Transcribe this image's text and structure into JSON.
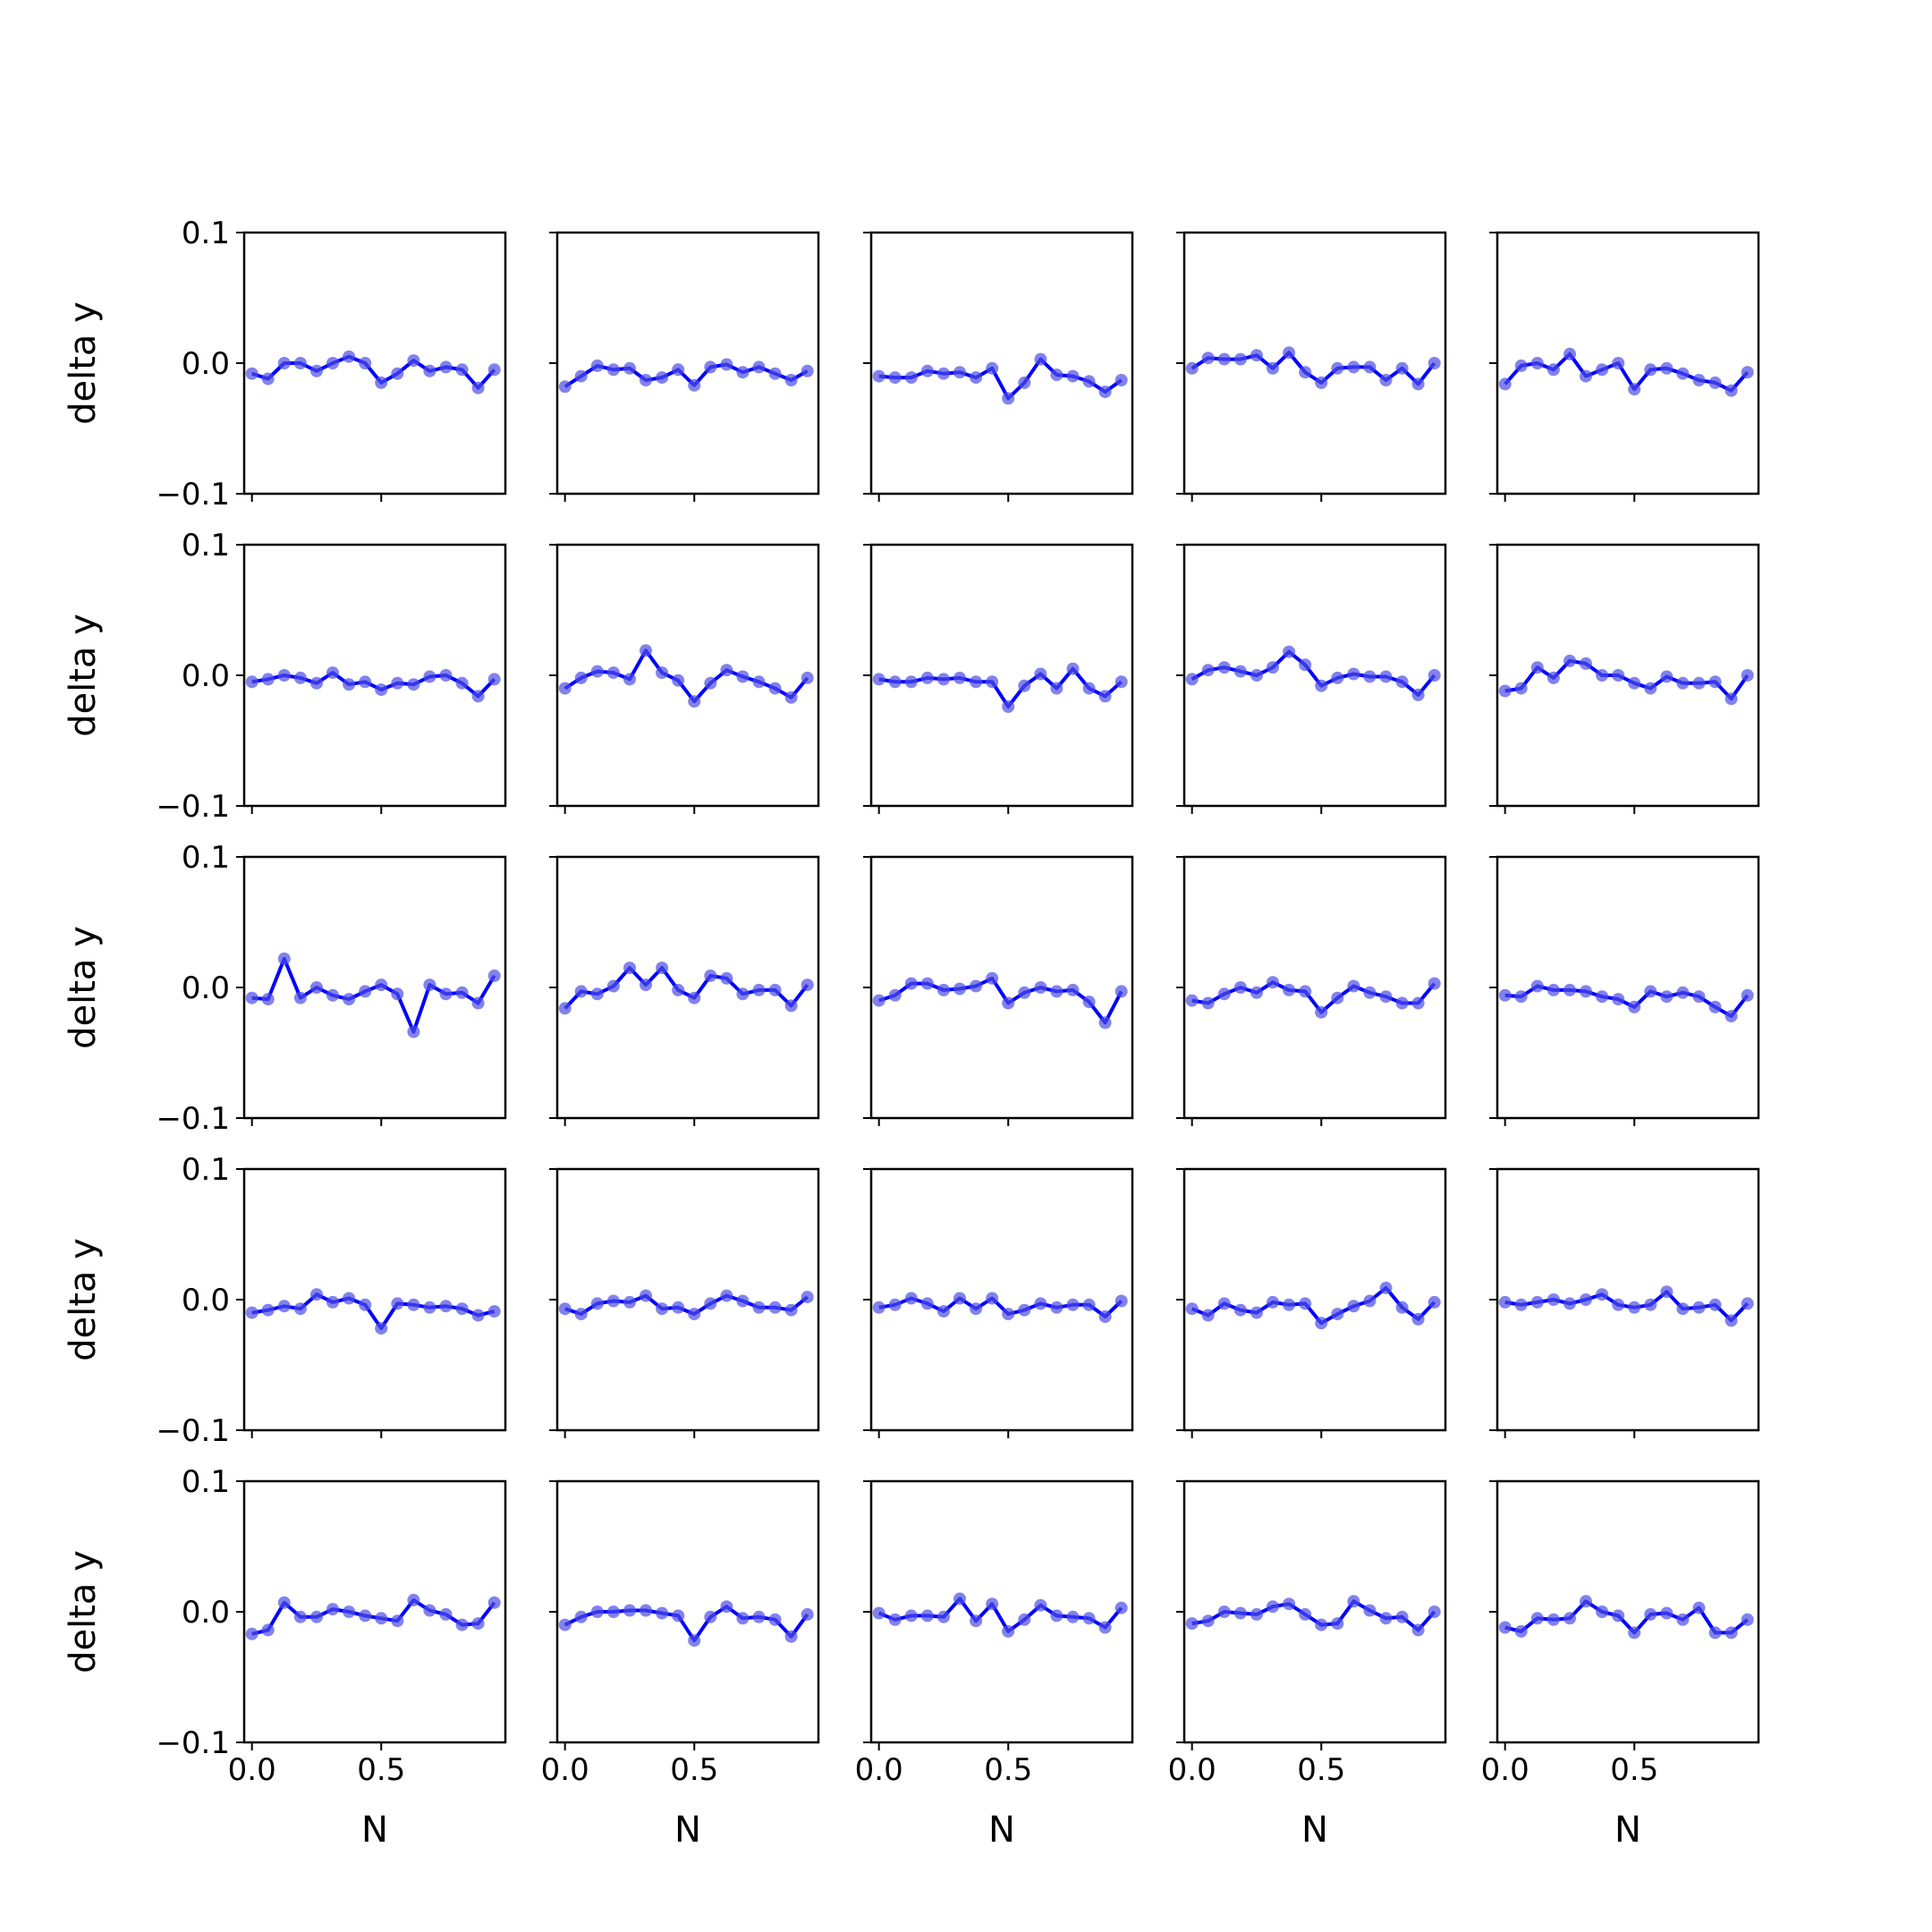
{
  "figure": {
    "rows": 5,
    "cols": 5
  },
  "chart_data": {
    "type": "line",
    "x": [
      0.0,
      0.0625,
      0.125,
      0.1875,
      0.25,
      0.3125,
      0.375,
      0.4375,
      0.5,
      0.5625,
      0.625,
      0.6875,
      0.75,
      0.8125,
      0.875,
      0.9375
    ],
    "xlabel": "N",
    "ylabel": "delta y",
    "xlim": [
      -0.03,
      0.98
    ],
    "ylim": [
      -0.1,
      0.1
    ],
    "xticks": [
      0.0,
      0.5
    ],
    "xticklabels": [
      "0.0",
      "0.5"
    ],
    "yticks": [
      0.1,
      0.0,
      -0.1
    ],
    "yticklabels": [
      "0.1",
      "0.0",
      "−0.1"
    ],
    "colors": {
      "line": "#0000ff",
      "marker": "#4d4de6"
    },
    "panels": [
      [
        -0.008,
        -0.012,
        0.0,
        0.0,
        -0.006,
        0.0,
        0.005,
        0.0,
        -0.015,
        -0.008,
        0.002,
        -0.006,
        -0.003,
        -0.005,
        -0.019,
        -0.005
      ],
      [
        -0.018,
        -0.01,
        -0.002,
        -0.005,
        -0.004,
        -0.013,
        -0.011,
        -0.005,
        -0.017,
        -0.003,
        -0.001,
        -0.007,
        -0.003,
        -0.008,
        -0.013,
        -0.006
      ],
      [
        -0.01,
        -0.011,
        -0.011,
        -0.006,
        -0.008,
        -0.007,
        -0.011,
        -0.004,
        -0.027,
        -0.015,
        0.003,
        -0.009,
        -0.01,
        -0.014,
        -0.022,
        -0.013
      ],
      [
        -0.004,
        0.004,
        0.003,
        0.003,
        0.006,
        -0.004,
        0.008,
        -0.007,
        -0.015,
        -0.004,
        -0.003,
        -0.003,
        -0.013,
        -0.004,
        -0.016,
        0.0
      ],
      [
        -0.016,
        -0.002,
        0.0,
        -0.005,
        0.007,
        -0.01,
        -0.005,
        0.0,
        -0.02,
        -0.005,
        -0.004,
        -0.008,
        -0.013,
        -0.015,
        -0.021,
        -0.007
      ],
      [
        -0.005,
        -0.003,
        0.0,
        -0.002,
        -0.006,
        0.002,
        -0.007,
        -0.005,
        -0.011,
        -0.006,
        -0.007,
        -0.001,
        0.0,
        -0.006,
        -0.016,
        -0.003
      ],
      [
        -0.01,
        -0.002,
        0.003,
        0.002,
        -0.003,
        0.019,
        0.002,
        -0.004,
        -0.02,
        -0.006,
        0.004,
        -0.001,
        -0.005,
        -0.01,
        -0.017,
        -0.002
      ],
      [
        -0.003,
        -0.005,
        -0.005,
        -0.002,
        -0.003,
        -0.002,
        -0.005,
        -0.005,
        -0.024,
        -0.008,
        0.001,
        -0.01,
        0.005,
        -0.01,
        -0.016,
        -0.005
      ],
      [
        -0.003,
        0.004,
        0.006,
        0.003,
        0.0,
        0.006,
        0.018,
        0.008,
        -0.008,
        -0.002,
        0.001,
        -0.001,
        -0.001,
        -0.005,
        -0.015,
        0.0
      ],
      [
        -0.012,
        -0.01,
        0.006,
        -0.002,
        0.011,
        0.009,
        0.0,
        0.0,
        -0.006,
        -0.01,
        -0.001,
        -0.006,
        -0.006,
        -0.005,
        -0.018,
        0.0
      ],
      [
        -0.008,
        -0.009,
        0.022,
        -0.008,
        0.0,
        -0.006,
        -0.009,
        -0.003,
        0.002,
        -0.005,
        -0.034,
        0.002,
        -0.005,
        -0.004,
        -0.012,
        0.009
      ],
      [
        -0.016,
        -0.003,
        -0.005,
        0.001,
        0.015,
        0.002,
        0.015,
        -0.002,
        -0.008,
        0.009,
        0.007,
        -0.005,
        -0.002,
        -0.002,
        -0.014,
        0.002
      ],
      [
        -0.01,
        -0.006,
        0.003,
        0.003,
        -0.002,
        -0.001,
        0.001,
        0.007,
        -0.012,
        -0.004,
        0.0,
        -0.003,
        -0.002,
        -0.011,
        -0.027,
        -0.003
      ],
      [
        -0.01,
        -0.012,
        -0.005,
        0.0,
        -0.004,
        0.004,
        -0.002,
        -0.003,
        -0.019,
        -0.008,
        0.001,
        -0.004,
        -0.007,
        -0.012,
        -0.012,
        0.003
      ],
      [
        -0.006,
        -0.007,
        0.001,
        -0.002,
        -0.002,
        -0.003,
        -0.007,
        -0.009,
        -0.015,
        -0.003,
        -0.007,
        -0.004,
        -0.007,
        -0.015,
        -0.022,
        -0.006
      ],
      [
        -0.01,
        -0.008,
        -0.005,
        -0.007,
        0.004,
        -0.002,
        0.001,
        -0.004,
        -0.022,
        -0.003,
        -0.004,
        -0.006,
        -0.005,
        -0.007,
        -0.012,
        -0.009
      ],
      [
        -0.007,
        -0.011,
        -0.003,
        -0.001,
        -0.002,
        0.003,
        -0.007,
        -0.006,
        -0.011,
        -0.003,
        0.003,
        -0.001,
        -0.006,
        -0.006,
        -0.008,
        0.002
      ],
      [
        -0.006,
        -0.004,
        0.001,
        -0.003,
        -0.009,
        0.001,
        -0.007,
        0.001,
        -0.011,
        -0.008,
        -0.003,
        -0.006,
        -0.004,
        -0.004,
        -0.013,
        -0.001
      ],
      [
        -0.007,
        -0.012,
        -0.003,
        -0.008,
        -0.01,
        -0.002,
        -0.004,
        -0.003,
        -0.018,
        -0.011,
        -0.005,
        -0.001,
        0.009,
        -0.006,
        -0.015,
        -0.002
      ],
      [
        -0.002,
        -0.004,
        -0.002,
        0.0,
        -0.003,
        0.0,
        0.004,
        -0.004,
        -0.006,
        -0.004,
        0.006,
        -0.007,
        -0.006,
        -0.004,
        -0.016,
        -0.003
      ],
      [
        -0.017,
        -0.014,
        0.007,
        -0.004,
        -0.004,
        0.002,
        0.0,
        -0.003,
        -0.005,
        -0.007,
        0.009,
        0.001,
        -0.002,
        -0.01,
        -0.009,
        0.007
      ],
      [
        -0.01,
        -0.004,
        0.0,
        0.0,
        0.001,
        0.001,
        -0.001,
        -0.003,
        -0.022,
        -0.004,
        0.004,
        -0.005,
        -0.004,
        -0.006,
        -0.019,
        -0.002
      ],
      [
        -0.001,
        -0.006,
        -0.003,
        -0.003,
        -0.004,
        0.01,
        -0.007,
        0.006,
        -0.015,
        -0.006,
        0.005,
        -0.003,
        -0.004,
        -0.005,
        -0.012,
        0.003
      ],
      [
        -0.009,
        -0.007,
        0.0,
        -0.001,
        -0.002,
        0.004,
        0.006,
        -0.002,
        -0.01,
        -0.009,
        0.008,
        0.001,
        -0.005,
        -0.004,
        -0.014,
        0.0
      ],
      [
        -0.012,
        -0.015,
        -0.005,
        -0.006,
        -0.005,
        0.008,
        0.0,
        -0.003,
        -0.016,
        -0.002,
        -0.001,
        -0.006,
        0.003,
        -0.016,
        -0.016,
        -0.006
      ]
    ]
  }
}
